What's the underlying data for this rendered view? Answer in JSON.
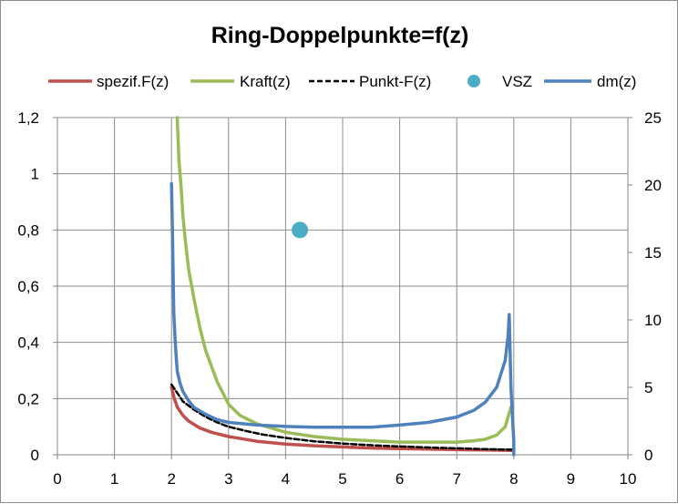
{
  "chart_data": {
    "type": "line",
    "title": "Ring-Doppelpunkte=f(z)",
    "grid": true,
    "legend_position": "top",
    "x_axis": {
      "min": 0,
      "max": 10,
      "ticks": [
        0,
        1,
        2,
        3,
        4,
        5,
        6,
        7,
        8,
        9,
        10
      ],
      "tick_labels": [
        "0",
        "1",
        "2",
        "3",
        "4",
        "5",
        "6",
        "7",
        "8",
        "9",
        "10"
      ]
    },
    "y_axis_left": {
      "min": 0,
      "max": 1.2,
      "ticks": [
        0,
        0.2,
        0.4,
        0.6,
        0.8,
        1,
        1.2
      ],
      "tick_labels": [
        "0",
        "0,2",
        "0,4",
        "0,6",
        "0,8",
        "1",
        "1,2"
      ]
    },
    "y_axis_right": {
      "min": 0,
      "max": 25,
      "ticks": [
        0,
        5,
        10,
        15,
        20,
        25
      ],
      "tick_labels": [
        "0",
        "5",
        "10",
        "15",
        "20",
        "25"
      ]
    },
    "legend": [
      {
        "name": "spezif.F(z)",
        "color": "#c0504d",
        "style": "solid"
      },
      {
        "name": "Kraft(z)",
        "color": "#9bbb59",
        "style": "solid"
      },
      {
        "name": "Punkt-F(z)",
        "color": "#000000",
        "style": "dashed"
      },
      {
        "name": "VSZ",
        "color": "#4bacc6",
        "style": "marker"
      },
      {
        "name": "dm(z)",
        "color": "#4f81bd",
        "style": "solid"
      }
    ],
    "series": [
      {
        "name": "spezif.F(z)",
        "axis": "left",
        "color": "#c0504d",
        "x": [
          2.0,
          2.05,
          2.1,
          2.2,
          2.3,
          2.5,
          2.7,
          3.0,
          3.5,
          4.0,
          4.5,
          5.0,
          5.5,
          6.0,
          6.5,
          7.0,
          7.5,
          7.9,
          8.0
        ],
        "y": [
          0.24,
          0.2,
          0.17,
          0.14,
          0.12,
          0.095,
          0.08,
          0.065,
          0.048,
          0.038,
          0.032,
          0.028,
          0.024,
          0.022,
          0.02,
          0.018,
          0.017,
          0.016,
          0.015
        ]
      },
      {
        "name": "Kraft(z)",
        "axis": "left",
        "color": "#9bbb59",
        "x": [
          2.1,
          2.13,
          2.17,
          2.2,
          2.25,
          2.3,
          2.4,
          2.5,
          2.6,
          2.8,
          3.0,
          3.2,
          3.5,
          4.0,
          4.5,
          5.0,
          5.5,
          6.0,
          6.5,
          7.0,
          7.3,
          7.5,
          7.7,
          7.85,
          7.95
        ],
        "y": [
          1.2,
          1.05,
          0.95,
          0.85,
          0.75,
          0.66,
          0.55,
          0.45,
          0.37,
          0.26,
          0.18,
          0.14,
          0.11,
          0.08,
          0.065,
          0.055,
          0.05,
          0.045,
          0.045,
          0.045,
          0.05,
          0.055,
          0.07,
          0.1,
          0.17
        ]
      },
      {
        "name": "Punkt-F(z)",
        "axis": "left",
        "color": "#000000",
        "x": [
          2.0,
          2.1,
          2.2,
          2.4,
          2.6,
          2.8,
          3.0,
          3.3,
          3.6,
          4.0,
          4.5,
          5.0,
          5.5,
          6.0,
          6.5,
          7.0,
          7.5,
          8.0
        ],
        "y": [
          0.25,
          0.22,
          0.19,
          0.16,
          0.135,
          0.115,
          0.1,
          0.085,
          0.072,
          0.06,
          0.048,
          0.04,
          0.034,
          0.03,
          0.026,
          0.023,
          0.02,
          0.018
        ]
      },
      {
        "name": "VSZ",
        "axis": "left",
        "color": "#4bacc6",
        "type": "scatter",
        "x": [
          4.25
        ],
        "y": [
          0.8
        ]
      },
      {
        "name": "dm(z)",
        "axis": "right",
        "color": "#4f81bd",
        "x": [
          2.0,
          2.02,
          2.04,
          2.07,
          2.1,
          2.15,
          2.2,
          2.3,
          2.4,
          2.6,
          2.8,
          3.0,
          3.5,
          4.0,
          4.5,
          5.0,
          5.5,
          6.0,
          6.5,
          7.0,
          7.3,
          7.5,
          7.7,
          7.85,
          7.9,
          7.92,
          7.95,
          8.0,
          8.0
        ],
        "y": [
          20.1,
          15.5,
          10.5,
          8.0,
          6.2,
          5.3,
          4.7,
          4.0,
          3.5,
          3.0,
          2.6,
          2.4,
          2.2,
          2.1,
          2.05,
          2.05,
          2.05,
          2.2,
          2.4,
          2.8,
          3.3,
          3.9,
          5.0,
          7.0,
          8.8,
          10.4,
          5.0,
          1.0,
          0.0
        ]
      }
    ]
  }
}
